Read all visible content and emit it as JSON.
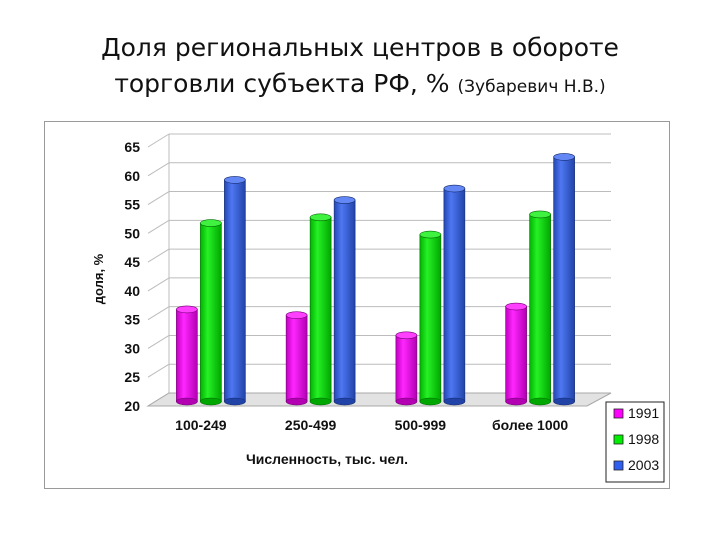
{
  "slide": {
    "title_line1": "Доля региональных центров в обороте",
    "title_line2": "торговли субъекта РФ, %",
    "title_author": "(Зубаревич Н.В.)"
  },
  "colors": {
    "1991": "#ff00ff",
    "1998": "#00ee00",
    "2003": "#2f5ff0",
    "grid": "#bcbcbc"
  },
  "chart_data": {
    "type": "bar",
    "title": "",
    "xlabel": "Численность, тыс. чел.",
    "ylabel": "доля, %",
    "ylim": [
      20,
      65
    ],
    "yticks": [
      20,
      25,
      30,
      35,
      40,
      45,
      50,
      55,
      60,
      65
    ],
    "categories": [
      "100-249",
      "250-499",
      "500-999",
      "более 1000"
    ],
    "series": [
      {
        "name": "1991",
        "values": [
          36,
          35,
          31.5,
          36.5
        ]
      },
      {
        "name": "1998",
        "values": [
          51,
          52,
          49,
          52.5
        ]
      },
      {
        "name": "2003",
        "values": [
          58.5,
          55,
          57,
          62.5
        ]
      }
    ],
    "grid": true,
    "style": "3d-cylinder",
    "legend_position": "bottom-right"
  }
}
